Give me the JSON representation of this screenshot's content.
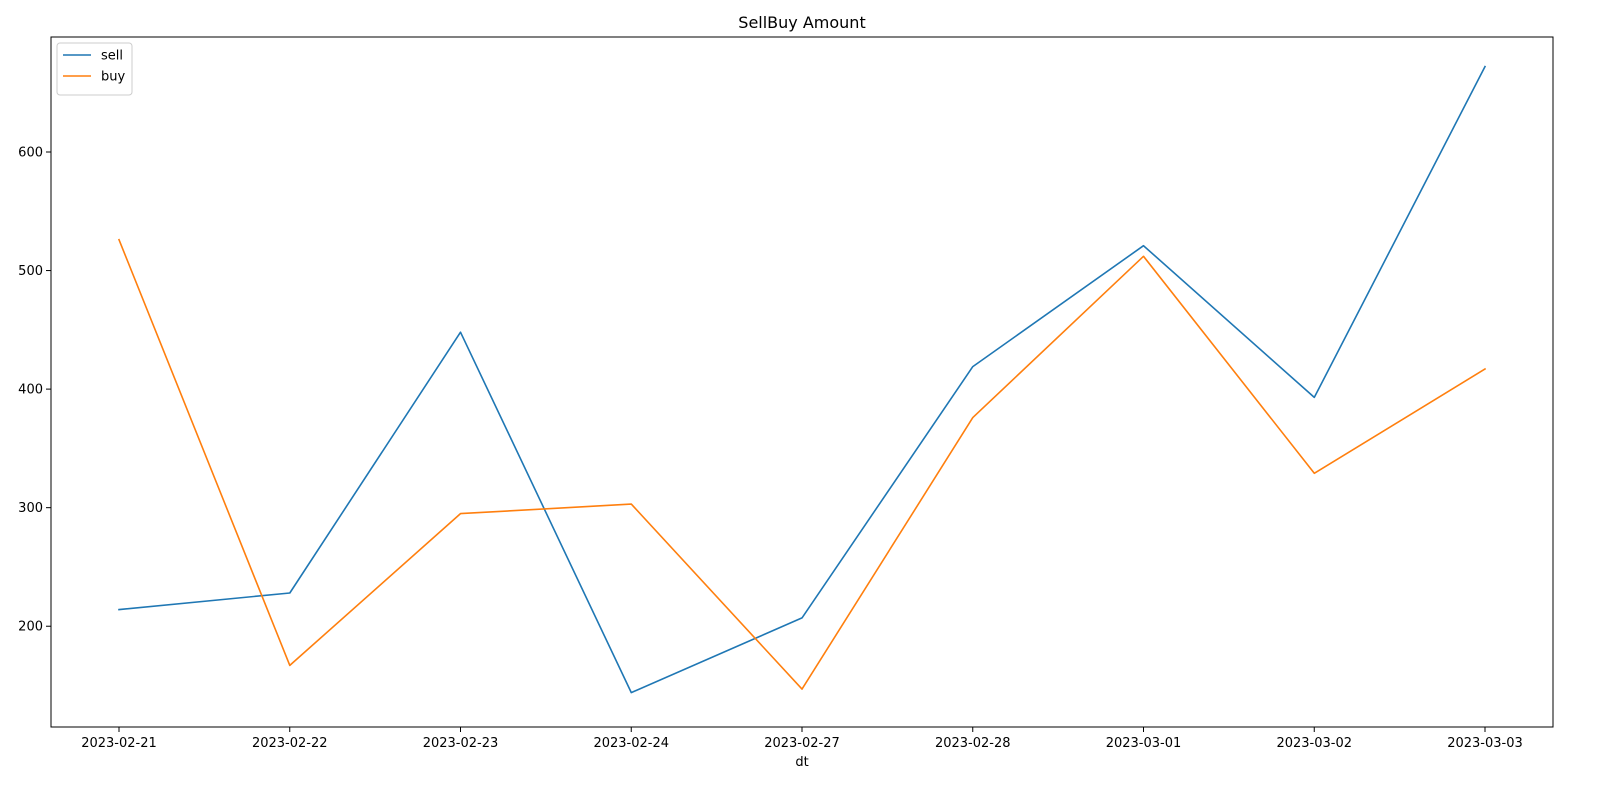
{
  "chart_data": {
    "type": "line",
    "title": "SellBuy Amount",
    "xlabel": "dt",
    "ylabel": "",
    "categories": [
      "2023-02-21",
      "2023-02-22",
      "2023-02-23",
      "2023-02-24",
      "2023-02-27",
      "2023-02-28",
      "2023-03-01",
      "2023-03-02",
      "2023-03-03"
    ],
    "yticks": [
      200,
      300,
      400,
      500,
      600
    ],
    "ylim": [
      115,
      697
    ],
    "grid": false,
    "legend_position": "upper-left",
    "series": [
      {
        "name": "sell",
        "color": "#1f77b4",
        "values": [
          214,
          228,
          448,
          144,
          207,
          419,
          521,
          393,
          672
        ]
      },
      {
        "name": "buy",
        "color": "#ff7f0e",
        "values": [
          526,
          167,
          295,
          303,
          147,
          376,
          512,
          329,
          417
        ]
      }
    ]
  }
}
